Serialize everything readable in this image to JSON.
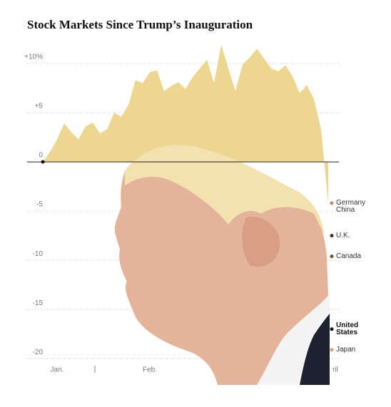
{
  "chart_data": {
    "type": "area",
    "title": "Stock Markets Since Trump’s Inauguration",
    "categories": [
      null,
      null,
      "Jan.",
      null,
      null,
      null,
      null,
      null,
      null,
      null,
      null,
      null,
      null,
      null,
      null,
      "Feb.",
      null,
      null,
      null,
      null,
      null,
      null,
      null,
      null,
      null,
      null,
      null,
      null,
      null,
      null,
      null,
      null,
      null,
      null,
      null,
      null,
      null,
      null,
      null,
      null,
      null,
      "ril"
    ],
    "values": [
      0,
      1.0,
      2.3,
      3.9,
      3.0,
      2.3,
      3.6,
      4.0,
      2.9,
      3.3,
      5.0,
      4.6,
      5.8,
      8.3,
      8.0,
      9.1,
      9.3,
      7.2,
      7.7,
      8.1,
      7.4,
      8.6,
      9.5,
      10.4,
      8.0,
      11.9,
      9.5,
      7.2,
      9.9,
      10.6,
      11.5,
      10.5,
      9.5,
      9.2,
      9.8,
      8.7,
      7.0,
      7.8,
      6.4,
      3.3,
      -4.2,
      null
    ],
    "color": "#edd68f",
    "ylim": [
      -21,
      12.5
    ],
    "yticks": [
      {
        "value": 10,
        "label": "+10%"
      },
      {
        "value": 5,
        "label": "+5"
      },
      0,
      -5,
      -10,
      -15,
      -20
    ],
    "grid": true,
    "end_labels": [
      {
        "name": "Germany",
        "value": -4.2,
        "color": "#c8925a"
      },
      {
        "name": "China",
        "value": -4.2,
        "color": "#c8925a"
      },
      {
        "name": "U.K.",
        "value": -7.5,
        "color": "#4a2a1a"
      },
      {
        "name": "Canada",
        "value": -9.6,
        "color": "#7a4a2a"
      },
      {
        "name": "United States",
        "value": -17.0,
        "color": "#111111"
      },
      {
        "name": "Japan",
        "value": -19.1,
        "color": "#d4a06a"
      }
    ]
  }
}
